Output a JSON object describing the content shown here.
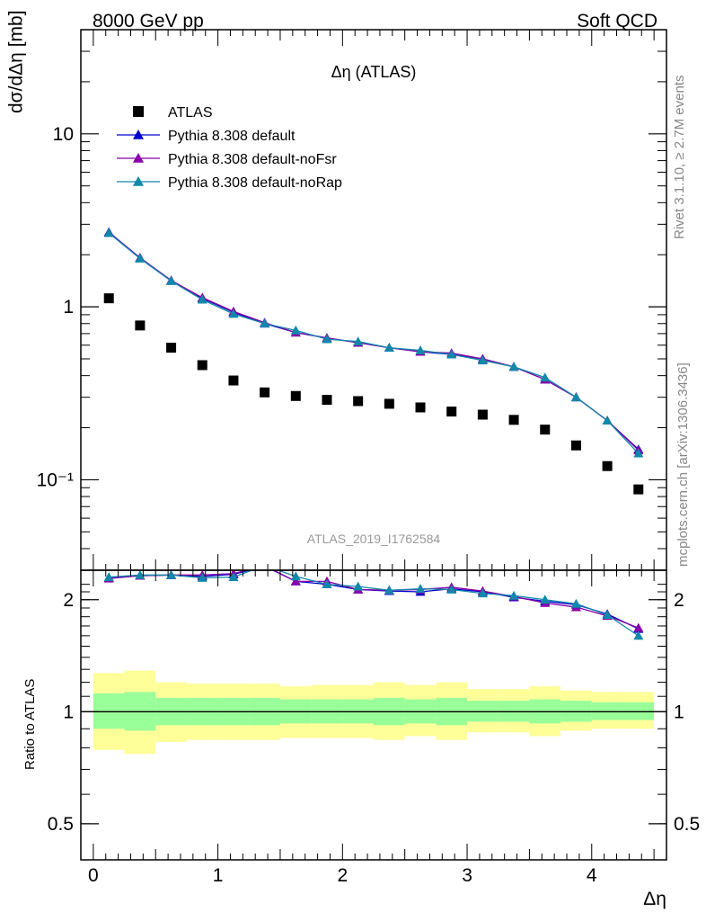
{
  "header": {
    "left_label": "8000 GeV pp",
    "right_label": "Soft QCD"
  },
  "side_labels": {
    "rivet": "Rivet 3.1.10, ≥ 2.7M events",
    "mcplots": "mcplots.cern.ch [arXiv:1306.3436]"
  },
  "watermark": "ATLAS_2019_I1762584",
  "colors": {
    "data": "#000000",
    "default": "#0000cc",
    "noFsr": "#8800aa",
    "noRap": "#1188aa",
    "band_outer": "#ffff99",
    "band_inner": "#99ff99"
  },
  "chart_data": [
    {
      "type": "line",
      "title": "Δη (ATLAS)",
      "ylabel": "dσ/dΔη [mb]",
      "yscale": "log",
      "ylim": [
        0.03,
        40
      ],
      "xlim": [
        -0.1,
        4.6
      ],
      "y_ticks": [
        {
          "value": 10,
          "label": "10"
        },
        {
          "value": 1,
          "label": "1"
        },
        {
          "value": 0.1,
          "label": "10⁻¹"
        }
      ],
      "legend_position": "top-left",
      "x": [
        0.125,
        0.375,
        0.625,
        0.875,
        1.125,
        1.375,
        1.625,
        1.875,
        2.125,
        2.375,
        2.625,
        2.875,
        3.125,
        3.375,
        3.625,
        3.875,
        4.125,
        4.375
      ],
      "series": [
        {
          "name": "ATLAS",
          "marker": "square",
          "color": "#000000",
          "values": [
            1.12,
            0.78,
            0.58,
            0.46,
            0.375,
            0.32,
            0.305,
            0.29,
            0.285,
            0.275,
            0.262,
            0.248,
            0.238,
            0.222,
            0.195,
            0.158,
            0.12,
            0.088
          ]
        },
        {
          "name": "Pythia 8.308 default",
          "marker": "triangle",
          "color": "#0000cc",
          "values": [
            2.7,
            1.92,
            1.42,
            1.12,
            0.93,
            0.8,
            0.71,
            0.66,
            0.62,
            0.58,
            0.55,
            0.53,
            0.5,
            0.45,
            0.38,
            0.3,
            0.22,
            0.15
          ]
        },
        {
          "name": "Pythia 8.308 default-noFsr",
          "marker": "triangle",
          "color": "#8800aa",
          "values": [
            2.68,
            1.91,
            1.42,
            1.13,
            0.94,
            0.81,
            0.71,
            0.66,
            0.62,
            0.58,
            0.55,
            0.54,
            0.5,
            0.45,
            0.38,
            0.3,
            0.22,
            0.148
          ]
        },
        {
          "name": "Pythia 8.308 default-noRap",
          "marker": "triangle",
          "color": "#1188aa",
          "values": [
            2.67,
            1.9,
            1.41,
            1.1,
            0.91,
            0.8,
            0.73,
            0.65,
            0.63,
            0.58,
            0.56,
            0.53,
            0.49,
            0.45,
            0.39,
            0.3,
            0.22,
            0.142
          ]
        }
      ]
    },
    {
      "type": "line",
      "ylabel": "Ratio to ATLAS",
      "xlabel": "Δη",
      "yscale": "log",
      "ylim": [
        0.4,
        2.4
      ],
      "xlim": [
        -0.1,
        4.6
      ],
      "x_ticks": [
        {
          "value": 0,
          "label": "0"
        },
        {
          "value": 1,
          "label": "1"
        },
        {
          "value": 2,
          "label": "2"
        },
        {
          "value": 3,
          "label": "3"
        },
        {
          "value": 4,
          "label": "4"
        }
      ],
      "y_ticks": [
        {
          "value": 2,
          "label": "2"
        },
        {
          "value": 1,
          "label": "1"
        },
        {
          "value": 0.5,
          "label": "0.5"
        }
      ],
      "x": [
        0.125,
        0.375,
        0.625,
        0.875,
        1.125,
        1.375,
        1.625,
        1.875,
        2.125,
        2.375,
        2.625,
        2.875,
        3.125,
        3.375,
        3.625,
        3.875,
        4.125,
        4.375
      ],
      "bands": {
        "bin_edges": [
          0,
          0.25,
          0.5,
          0.75,
          1,
          1.25,
          1.5,
          1.75,
          2,
          2.25,
          2.5,
          2.75,
          3,
          3.25,
          3.5,
          3.75,
          4,
          4.25,
          4.5
        ],
        "outer_low": [
          0.79,
          0.77,
          0.83,
          0.84,
          0.84,
          0.84,
          0.85,
          0.85,
          0.85,
          0.84,
          0.86,
          0.84,
          0.88,
          0.88,
          0.86,
          0.89,
          0.9,
          0.9
        ],
        "outer_high": [
          1.27,
          1.29,
          1.2,
          1.19,
          1.19,
          1.19,
          1.17,
          1.18,
          1.18,
          1.2,
          1.18,
          1.2,
          1.15,
          1.15,
          1.17,
          1.14,
          1.13,
          1.13
        ],
        "inner_low": [
          0.9,
          0.89,
          0.92,
          0.92,
          0.92,
          0.92,
          0.93,
          0.93,
          0.93,
          0.92,
          0.93,
          0.92,
          0.94,
          0.94,
          0.93,
          0.94,
          0.95,
          0.95
        ],
        "inner_high": [
          1.12,
          1.13,
          1.09,
          1.09,
          1.09,
          1.09,
          1.08,
          1.08,
          1.08,
          1.09,
          1.08,
          1.09,
          1.07,
          1.07,
          1.08,
          1.07,
          1.06,
          1.06
        ]
      },
      "series": [
        {
          "name": "Pythia 8.308 default",
          "color": "#0000cc",
          "values": [
            2.29,
            2.32,
            2.33,
            2.31,
            2.34,
            2.46,
            2.24,
            2.2,
            2.13,
            2.11,
            2.1,
            2.14,
            2.1,
            2.03,
            1.98,
            1.94,
            1.83,
            1.67
          ]
        },
        {
          "name": "Pythia 8.308 default-noFsr",
          "color": "#8800aa",
          "values": [
            2.28,
            2.32,
            2.33,
            2.33,
            2.35,
            2.47,
            2.24,
            2.24,
            2.13,
            2.12,
            2.13,
            2.16,
            2.11,
            2.04,
            1.96,
            1.91,
            1.81,
            1.68
          ]
        },
        {
          "name": "Pythia 8.308 default-noRap",
          "color": "#1188aa",
          "values": [
            2.3,
            2.33,
            2.33,
            2.29,
            2.3,
            2.47,
            2.31,
            2.2,
            2.17,
            2.12,
            2.14,
            2.13,
            2.08,
            2.05,
            2.0,
            1.95,
            1.82,
            1.6
          ]
        }
      ]
    }
  ]
}
